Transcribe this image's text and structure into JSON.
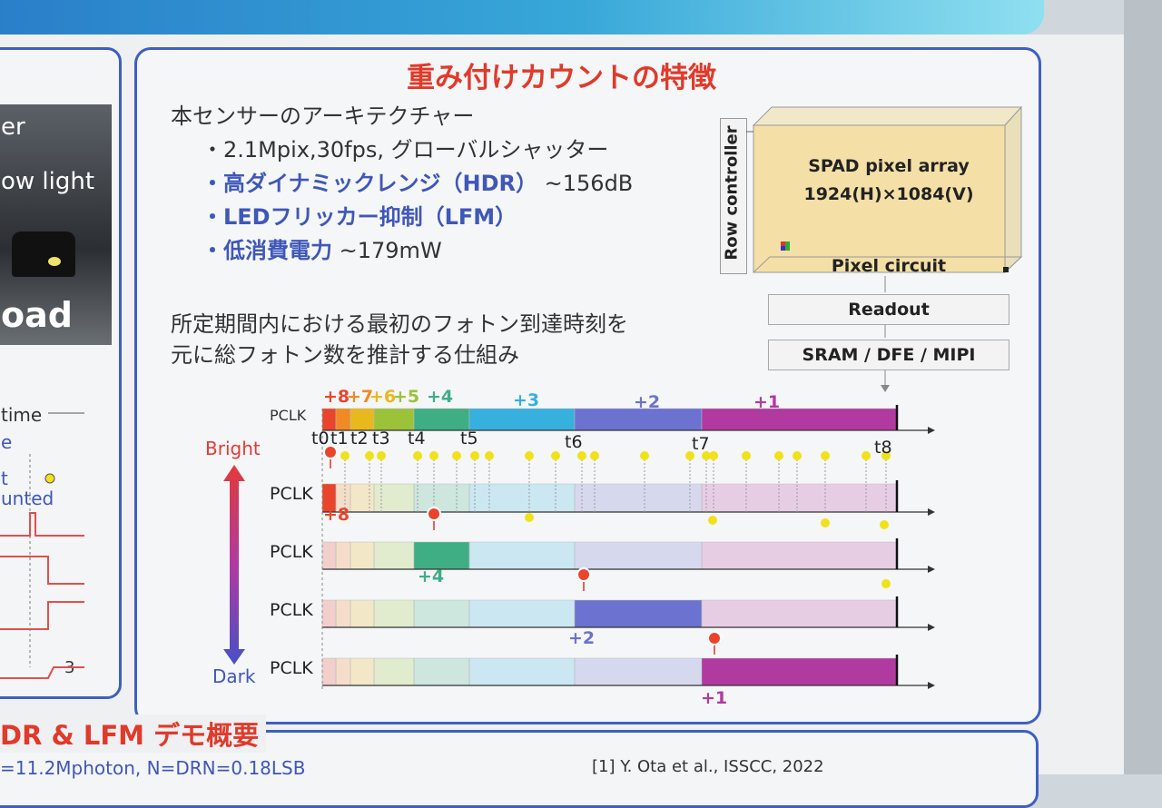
{
  "left": {
    "t1": "er",
    "t2": "ow light",
    "t3": "oad",
    "t4": "time",
    "t5": "e",
    "t6": "t",
    "t7": "unted",
    "t8": "3"
  },
  "main": {
    "title": "重み付けカウントの特徴",
    "arch_heading": "本センサーのアーキテクチャー",
    "bullet1": "・2.1Mpix,30fps, グローバルシャッター",
    "bullet2_a": "・高ダイナミックレンジ（HDR）",
    "bullet2_b": "~156dB",
    "bullet3": "・LEDフリッカー抑制（LFM）",
    "bullet4_a": "・低消費電力",
    "bullet4_b": "~179mW",
    "desc1": "所定期間内における最初のフォトン到達時刻を",
    "desc2": "元に総フォトン数を推計する仕組み"
  },
  "block": {
    "row_controller": "Row controller",
    "array_line1": "SPAD pixel array",
    "array_line2": "1924(H)×1084(V)",
    "pixel_circuit": "Pixel circuit",
    "readout": "Readout",
    "sram": "SRAM / DFE / MIPI"
  },
  "timing": {
    "pclk": "PCLK",
    "bright": "Bright",
    "dark": "Dark",
    "weights": [
      "+8",
      "+7",
      "+6",
      "+5",
      "+4",
      "+3",
      "+2",
      "+1"
    ],
    "weight_colors": [
      "#e8452c",
      "#f08a24",
      "#e9b81e",
      "#9cc23a",
      "#3fae84",
      "#38b0dd",
      "#6b72cf",
      "#b03aa0"
    ],
    "ticks": [
      "t0",
      "t1",
      "t2",
      "t3",
      "t4",
      "t5",
      "t6",
      "t7",
      "t8"
    ],
    "row_results": [
      "+8",
      "+4",
      "+2",
      "+1"
    ]
  },
  "bottom": {
    "heading": "DR & LFM デモ概要",
    "formula": "=11.2Mphoton, N=DRN=0.18LSB",
    "ref": "[1] Y. Ota et al., ISSCC, 2022"
  }
}
